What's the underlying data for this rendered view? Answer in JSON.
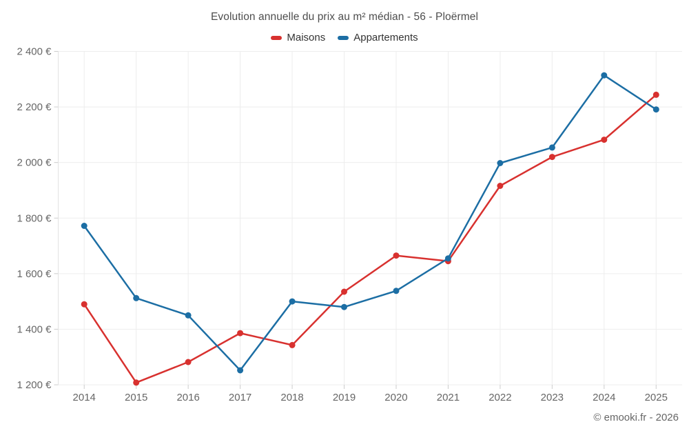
{
  "title": "Evolution annuelle du prix au m² médian - 56 - Ploërmel",
  "footer": "© emooki.fr - 2026",
  "legend": {
    "items": [
      {
        "label": "Maisons",
        "color": "#d8312f"
      },
      {
        "label": "Appartements",
        "color": "#1c6ea4"
      }
    ]
  },
  "chart_data": {
    "type": "line",
    "title": "Evolution annuelle du prix au m² médian - 56 - Ploërmel",
    "categories": [
      "2014",
      "2015",
      "2016",
      "2017",
      "2018",
      "2019",
      "2020",
      "2021",
      "2022",
      "2023",
      "2024",
      "2025"
    ],
    "series": [
      {
        "name": "Maisons",
        "color": "#d8312f",
        "values": [
          1490,
          1208,
          1282,
          1386,
          1343,
          1535,
          1665,
          1645,
          1916,
          2020,
          2082,
          2244
        ]
      },
      {
        "name": "Appartements",
        "color": "#1c6ea4",
        "values": [
          1772,
          1512,
          1450,
          1252,
          1500,
          1480,
          1538,
          1655,
          1998,
          2054,
          2314,
          2191
        ]
      }
    ],
    "xlabel": "",
    "ylabel": "",
    "ylim": [
      1200,
      2400
    ],
    "yticks": [
      1200,
      1400,
      1600,
      1800,
      2000,
      2200,
      2400
    ],
    "ytick_labels": [
      "1 200 €",
      "1 400 €",
      "1 600 €",
      "1 800 €",
      "2 000 €",
      "2 200 €",
      "2 400 €"
    ],
    "grid": true,
    "legend_position": "top",
    "unit": "€"
  },
  "style_colors": {
    "gridline": "#ededed",
    "axis_line": "#e2e2e2",
    "tick": "#cccccc",
    "axis_text": "#666666"
  }
}
